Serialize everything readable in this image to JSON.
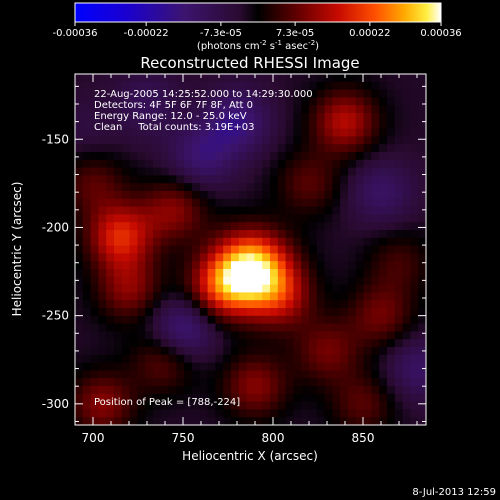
{
  "colorbar": {
    "ticks": [
      "-0.00036",
      "-0.00022",
      "-7.3e-05",
      "7.3e-05",
      "0.00022",
      "0.00036"
    ],
    "units_main": "(photons cm",
    "units_exp1": "-2",
    "units_mid": " s",
    "units_exp2": "-1",
    "units_mid2": " asec",
    "units_exp3": "-2",
    "units_close": ")"
  },
  "chart_data": {
    "type": "heatmap",
    "title": "Reconstructed RHESSI Image",
    "xlabel": "Heliocentric X (arcsec)",
    "ylabel": "Heliocentric Y (arcsec)",
    "xlim": [
      690,
      885
    ],
    "ylim": [
      -312,
      -113
    ],
    "xticks": [
      700,
      750,
      800,
      850
    ],
    "xtick_labels": [
      "700",
      "750",
      "800",
      "850"
    ],
    "yticks": [
      -150,
      -200,
      -250,
      -300
    ],
    "ytick_labels": [
      "-150",
      "-200",
      "-250",
      "-300"
    ],
    "value_range": [
      -0.00036,
      0.00036
    ],
    "annotations": [
      "22-Aug-2005 14:25:52.000 to 14:29:30.000",
      "Detectors: 4F 5F 6F 7F 8F, Att 0",
      "Energy Range: 12.0 - 25.0 keV",
      "Clean     Total counts: 3.19E+03"
    ],
    "peak_label": "Position of Peak = [788,-224]",
    "peak": [
      788,
      -224
    ],
    "sources": [
      {
        "x": 788,
        "y": -224,
        "amp": 1.0
      },
      {
        "x": 770,
        "y": -235,
        "amp": 0.45
      },
      {
        "x": 805,
        "y": -240,
        "amp": 0.35
      },
      {
        "x": 715,
        "y": -205,
        "amp": 0.55
      },
      {
        "x": 745,
        "y": -190,
        "amp": 0.35
      },
      {
        "x": 700,
        "y": -175,
        "amp": 0.25
      },
      {
        "x": 840,
        "y": -140,
        "amp": 0.45
      },
      {
        "x": 820,
        "y": -175,
        "amp": 0.25
      },
      {
        "x": 720,
        "y": -235,
        "amp": 0.35
      },
      {
        "x": 740,
        "y": -275,
        "amp": 0.3
      },
      {
        "x": 705,
        "y": -300,
        "amp": 0.35
      },
      {
        "x": 790,
        "y": -290,
        "amp": 0.35
      },
      {
        "x": 830,
        "y": -270,
        "amp": 0.3
      },
      {
        "x": 860,
        "y": -250,
        "amp": 0.3
      },
      {
        "x": 870,
        "y": -220,
        "amp": 0.2
      },
      {
        "x": 850,
        "y": -300,
        "amp": 0.25
      },
      {
        "x": 760,
        "y": -160,
        "amp": -0.3
      },
      {
        "x": 780,
        "y": -140,
        "amp": -0.35
      },
      {
        "x": 860,
        "y": -180,
        "amp": -0.25
      },
      {
        "x": 750,
        "y": -258,
        "amp": -0.4
      },
      {
        "x": 730,
        "y": -130,
        "amp": -0.2
      },
      {
        "x": 880,
        "y": -280,
        "amp": -0.25
      },
      {
        "x": 695,
        "y": -145,
        "amp": -0.1
      }
    ]
  },
  "footer": {
    "timestamp": "8-Jul-2013 12:59"
  }
}
